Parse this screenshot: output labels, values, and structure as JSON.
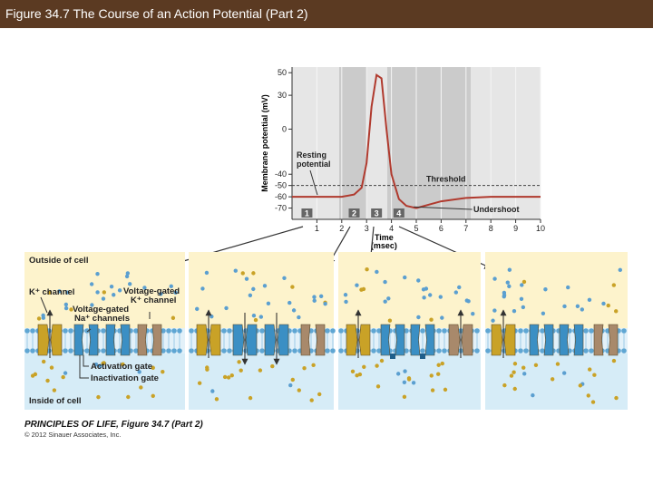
{
  "header": {
    "title": "Figure 34.7  The Course of an Action Potential (Part 2)"
  },
  "chart_data": {
    "type": "line",
    "ylabel": "Membrane potential (mV)",
    "xlabel": "Time",
    "xlabel_unit": "(msec)",
    "x": [
      0,
      1,
      2,
      2.5,
      2.8,
      3.0,
      3.2,
      3.4,
      3.6,
      3.8,
      4.0,
      4.3,
      4.6,
      5,
      5.5,
      6,
      7,
      8,
      10
    ],
    "values": [
      -60,
      -60,
      -60,
      -58,
      -52,
      -30,
      20,
      48,
      45,
      0,
      -40,
      -62,
      -68,
      -70,
      -67,
      -64,
      -61,
      -60,
      -60
    ],
    "color": "#b03a2e",
    "xlim": [
      0,
      10
    ],
    "ylim": [
      -80,
      55
    ],
    "xticks": [
      1,
      2,
      3,
      4,
      5,
      6,
      7,
      8,
      9,
      10
    ],
    "yticks": [
      -70,
      -60,
      -50,
      -40,
      0,
      30,
      50
    ],
    "grid": true,
    "threshold": -50,
    "threshold_label": "Threshold",
    "resting_label": [
      "Resting",
      "potential"
    ],
    "undershoot_label": "Undershoot",
    "phases": {
      "labels": [
        1,
        2,
        3,
        4
      ],
      "x": [
        0.6,
        2.5,
        3.4,
        4.3
      ]
    }
  },
  "diagram": {
    "outside": "Outside of cell",
    "inside": "Inside of cell",
    "k_channel": "K⁺ channel",
    "vg_k_channel": [
      "Voltage-gated",
      "K⁺ channel"
    ],
    "vg_na_channels": [
      "Voltage-gated",
      "Na⁺ channels"
    ],
    "activation_gate": "Activation gate",
    "inactivation_gate": "Inactivation gate"
  },
  "caption": {
    "source": "PRINCIPLES OF LIFE, Figure 34.7 (Part 2)",
    "copyright": "© 2012 Sinauer Associates, Inc."
  }
}
